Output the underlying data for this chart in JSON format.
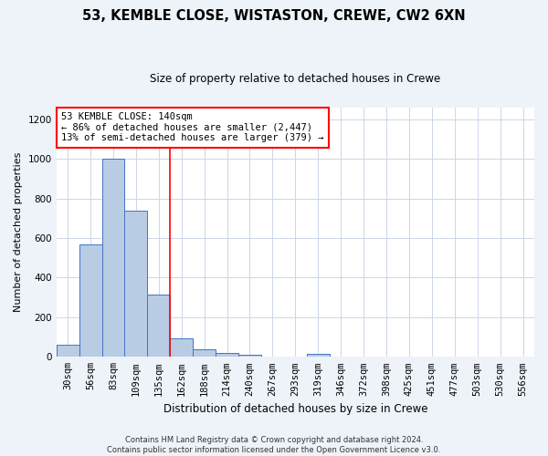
{
  "title": "53, KEMBLE CLOSE, WISTASTON, CREWE, CW2 6XN",
  "subtitle": "Size of property relative to detached houses in Crewe",
  "xlabel": "Distribution of detached houses by size in Crewe",
  "ylabel": "Number of detached properties",
  "footer_line1": "Contains HM Land Registry data © Crown copyright and database right 2024.",
  "footer_line2": "Contains public sector information licensed under the Open Government Licence v3.0.",
  "categories": [
    "30sqm",
    "56sqm",
    "83sqm",
    "109sqm",
    "135sqm",
    "162sqm",
    "188sqm",
    "214sqm",
    "240sqm",
    "267sqm",
    "293sqm",
    "319sqm",
    "346sqm",
    "372sqm",
    "398sqm",
    "425sqm",
    "451sqm",
    "477sqm",
    "503sqm",
    "530sqm",
    "556sqm"
  ],
  "values": [
    60,
    570,
    1000,
    740,
    315,
    95,
    38,
    22,
    12,
    0,
    0,
    14,
    0,
    0,
    0,
    0,
    0,
    0,
    0,
    0,
    0
  ],
  "bar_color": "#b8cce4",
  "bar_edge_color": "#4472c4",
  "ylim": [
    0,
    1260
  ],
  "yticks": [
    0,
    200,
    400,
    600,
    800,
    1000,
    1200
  ],
  "annotation_text": "53 KEMBLE CLOSE: 140sqm\n← 86% of detached houses are smaller (2,447)\n13% of semi-detached houses are larger (379) →",
  "redline_x": 4.5,
  "bg_color": "#eef2f9",
  "plot_bg_color": "#ffffff",
  "grid_color": "#cdd5e8",
  "title_fontsize": 10.5,
  "subtitle_fontsize": 8.5,
  "ylabel_fontsize": 8,
  "xlabel_fontsize": 8.5,
  "tick_fontsize": 7.5,
  "footer_fontsize": 6,
  "annot_fontsize": 7.5
}
